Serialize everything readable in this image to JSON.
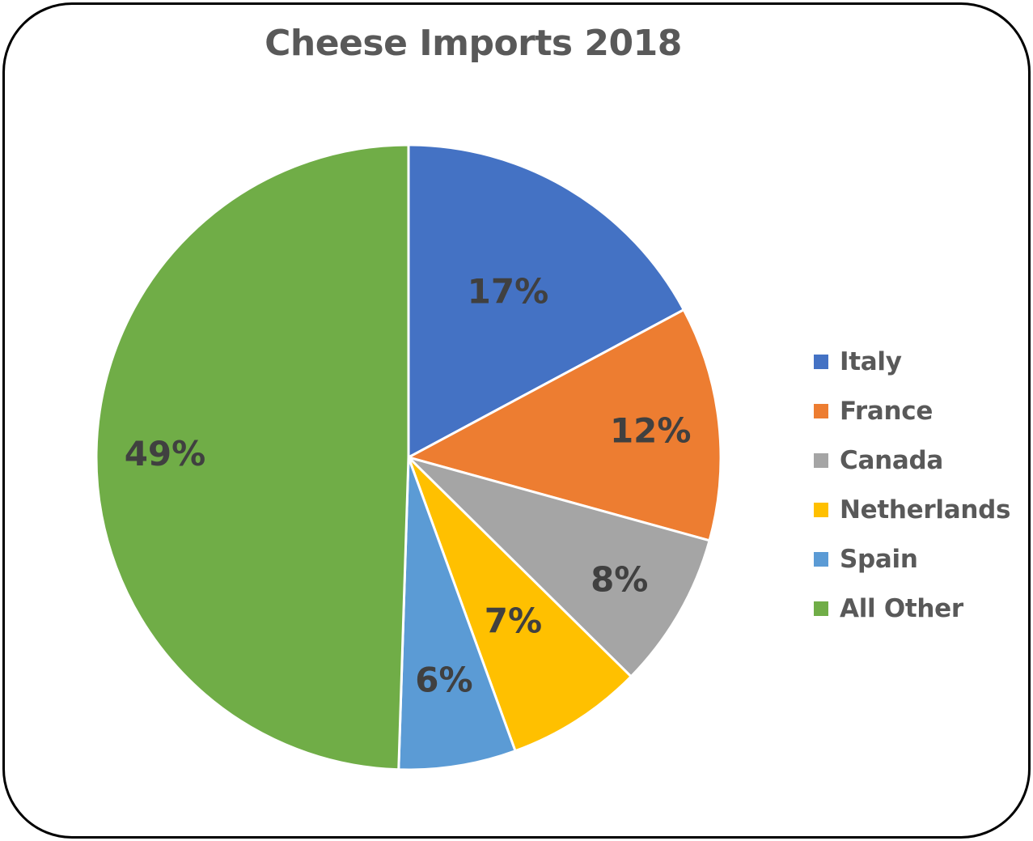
{
  "chart_data": {
    "type": "pie",
    "title": "Cheese Imports 2018",
    "categories": [
      "Italy",
      "France",
      "Canada",
      "Netherlands",
      "Spain",
      "All Other"
    ],
    "values": [
      17,
      12,
      8,
      7,
      6,
      49
    ],
    "value_labels": [
      "17%",
      "12%",
      "8%",
      "7%",
      "6%",
      "49%"
    ],
    "colors": [
      "#4472C4",
      "#ED7D31",
      "#A5A5A5",
      "#FFC000",
      "#5B9BD5",
      "#70AD47"
    ],
    "start_angle_deg": 0,
    "direction": "clockwise",
    "legend_position": "right",
    "data_labels": "inside percentage"
  },
  "title": "Cheese Imports 2018",
  "legend": {
    "items": [
      {
        "label": "Italy",
        "color": "#4472C4"
      },
      {
        "label": "France",
        "color": "#ED7D31"
      },
      {
        "label": "Canada",
        "color": "#A5A5A5"
      },
      {
        "label": "Netherlands",
        "color": "#FFC000"
      },
      {
        "label": "Spain",
        "color": "#5B9BD5"
      },
      {
        "label": "All Other",
        "color": "#70AD47"
      }
    ]
  }
}
